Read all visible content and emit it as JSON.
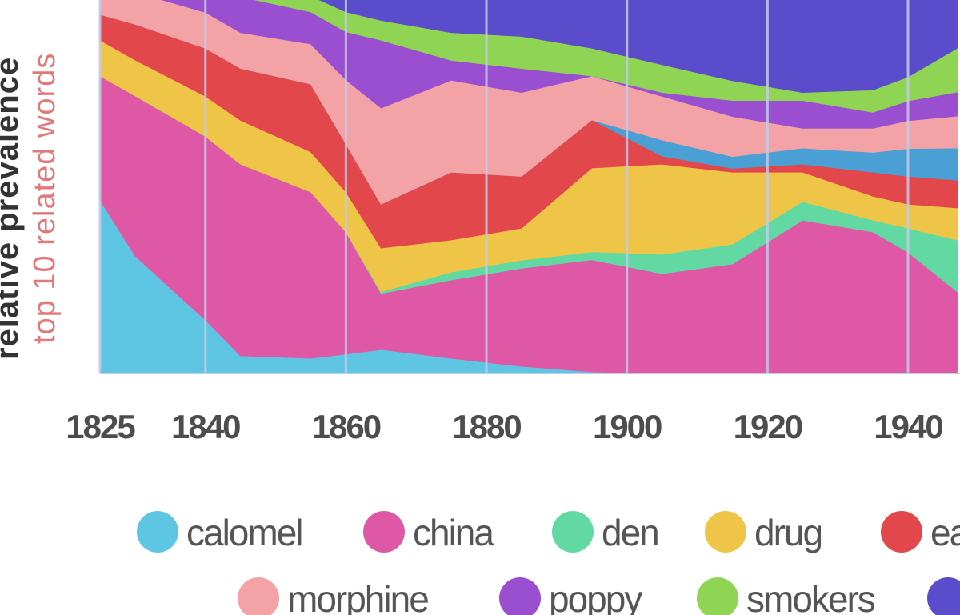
{
  "chart_data": {
    "type": "stacked-area",
    "y_label": "relative prevalence",
    "y_sublabel": "top 10 related words",
    "x": [
      1825,
      1830,
      1840,
      1845,
      1855,
      1860,
      1865,
      1875,
      1885,
      1895,
      1905,
      1915,
      1925,
      1935,
      1940,
      1947
    ],
    "xlim": [
      1825,
      1947.4
    ],
    "xticks": [
      1825,
      1840,
      1860,
      1880,
      1900,
      1920,
      1940
    ],
    "ylim": [
      0,
      100
    ],
    "grid": true,
    "series": [
      {
        "name": "calomel",
        "color": "#5ec6e3",
        "values": [
          41.2,
          27.9,
          12.7,
          4.2,
          3.6,
          4.6,
          5.7,
          3.6,
          1.7,
          0.4,
          0,
          0,
          0,
          0,
          0,
          0
        ]
      },
      {
        "name": "china",
        "color": "#df58a6",
        "values": [
          29.4,
          38.0,
          43.6,
          45.5,
          39.5,
          29.0,
          13.3,
          18.6,
          23.3,
          26.6,
          23.7,
          26.0,
          36.4,
          33.6,
          28.8,
          19.4
        ]
      },
      {
        "name": "den",
        "color": "#62d9a3",
        "values": [
          0,
          0,
          0,
          0,
          0,
          0,
          0.4,
          1.9,
          1.9,
          1.9,
          4.6,
          4.7,
          4.4,
          2.8,
          5.7,
          12.3
        ]
      },
      {
        "name": "drug",
        "color": "#efc547",
        "values": [
          8.5,
          8.5,
          9.5,
          10.4,
          9.5,
          9.5,
          10.4,
          7.6,
          7.6,
          19.9,
          21.4,
          17.1,
          7.0,
          5.7,
          5.7,
          7.6
        ]
      },
      {
        "name": "ea",
        "color": "#e2474c",
        "values": [
          6.1,
          8.5,
          11.4,
          12.3,
          16.1,
          11.4,
          10.4,
          16.1,
          12.3,
          11.4,
          1.9,
          0.9,
          1.9,
          5.7,
          6.6,
          6.6
        ]
      },
      {
        "color": "#4aa0d5",
        "values": [
          0,
          0,
          0,
          0,
          0,
          0,
          0,
          0,
          0,
          0,
          3.8,
          2.8,
          3.8,
          4.7,
          6.6,
          7.6
        ]
      },
      {
        "name": "morphine",
        "color": "#f3a3a6",
        "values": [
          7.2,
          7.6,
          8.5,
          8.5,
          9.5,
          15.2,
          22.8,
          21.8,
          19.9,
          10.4,
          10.4,
          9.5,
          4.7,
          5.7,
          6.6,
          7.6
        ]
      },
      {
        "name": "poppy",
        "color": "#9a4fd1",
        "values": [
          3.8,
          4.7,
          6.6,
          8.5,
          7.6,
          11.4,
          16.1,
          4.7,
          5.7,
          0,
          0.9,
          3.8,
          6.6,
          3.8,
          4.7,
          5.7
        ]
      },
      {
        "name": "smokers",
        "color": "#8fd453",
        "values": [
          1.9,
          2.5,
          3.8,
          2.8,
          3.8,
          4.7,
          4.7,
          6.6,
          7.6,
          6.6,
          6.6,
          4.7,
          1.9,
          5.3,
          5.7,
          10.4
        ]
      },
      {
        "color": "#5a4ccb",
        "values": [
          1.9,
          2.3,
          3.8,
          7.6,
          10.4,
          14.2,
          16.1,
          19.0,
          19.9,
          22.8,
          26.6,
          30.4,
          33.2,
          32.6,
          29.4,
          22.8
        ]
      }
    ]
  }
}
